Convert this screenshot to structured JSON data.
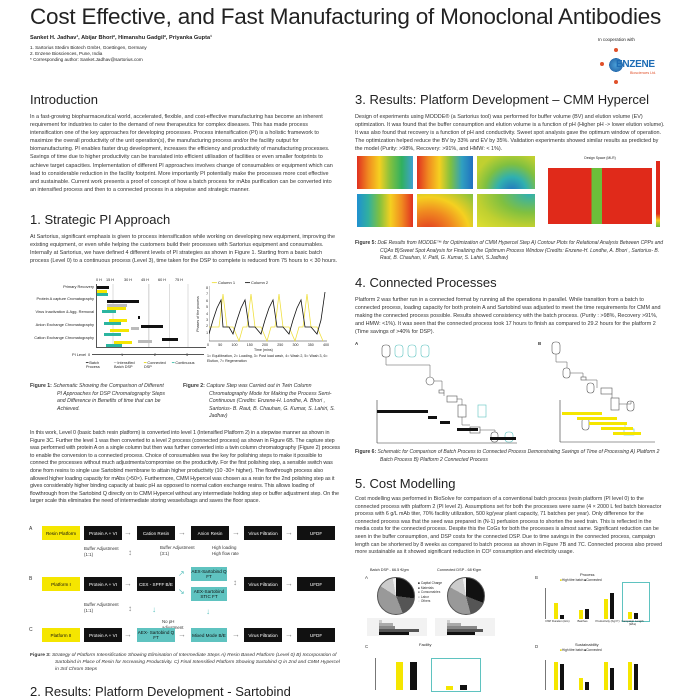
{
  "title": "Cost Effective, and Fast Manufacturing of Monoclonal Antibodies",
  "authors": "Sanket H. Jadhav¹, Abijar Bhori², Himanshu Gadgil², Priyanka Gupta¹",
  "affiliations": [
    "1. Sartorius Stedim Biotech GmbH, Goettingen, Germany",
    "2. Enzene Biosciences, Pune, India",
    "* Corresponding author: Sanket.Jadhav@sartorius.com"
  ],
  "cooperation": {
    "label": "In cooperation with",
    "logo_text": "ENZENE",
    "logo_sub": "Biosciences Ltd."
  },
  "intro": {
    "heading": "Introduction",
    "body": "In a fast-growing biopharmaceutical world, accelerated, flexible, and cost-effective manufacturing has become an inherent requirement for industries to cater to the demand of new therapeutics for complex diseases. This has made process intensification one of the key approaches for developing processes. Process intensification (PI) is a holistic framework to maximize the overall productivity of the unit operation(s), the manufacturing process and/or the facility output for biomanufacturing. PI enables faster drug development, increases the efficiency and productivity of manufacturing processes. Savings of time due to higher productivity can be translated into efficient utilisation of facilities or even smaller footprints to achieve target capacities. Implementation of different PI approaches involves change of consumables or equipment which can lead to considerable reduction in the facility footprint. More importantly PI potentially make the processes more cost effective and sustainable. Current work presents a proof of concept of how a batch process for mAbs purification can be converted into an intensified process and then to a connected process in a stepwise and strategic manner."
  },
  "s1": {
    "heading": "1. Strategic PI Approach",
    "body": "At Sartorius, significant emphasis is given to process intensification while working on developing new equipment, improving the existing equipment, or even while helping the customers build their processes with Sartorius equipment and consumables. Internally at Sartorius, we have defined 4 different levels of PI strategies as shown in Figure 1. Starting from a basic batch process (Level 0) to a continuous process (Level 3), time taken for the DSP to complete is reduced from 75 hours to < 30 hours.",
    "body2": "In this work, Level 0 (basic batch resin platform) is converted into level 1 (Intensified Platform 2) in a stepwise manner as shown in Figure 3C. Further the level 1 was then converted to a level 2 process (connected process) as shown in Figure 6B. The capture step was performed with protein A on a single column but then was further converted into a twin column chromatography (Figure 2) process to enable the conversion to a connected process. Choice of consumables was the key for polishing steps to make it possible to connect the processes without much adjustments/compromise on the productivity. For the first polishing step, a sensible switch was done from resins to single use Sartobind membrane to attain higher productivity (10 -30× higher). The flowthrough process also allowed higher loading capacity for mAbs (>50×). Furthermore, CMM Hypercel was chosen as a resin for the 2nd polishing step as it gives considerably higher binding capacity at basic pH as opposed to normal cation exchange resins. This allows loading of flowthrough from the Sartobind Q directly on to CMM Hypercel without any intermediate holding step or buffer adjustment step. On the larger scale this eliminates the need of intermediate storing vessels/bags and saves the floor space."
  },
  "fig1": {
    "time_ticks": [
      "0 H",
      "15 H",
      "30 H",
      "45 H",
      "60 H",
      "75 H"
    ],
    "rows": [
      "Primary Recovery",
      "Protein A capture Cromatography",
      "Virus Inactivation & Agg. Removal",
      "Anion Exchange Chromatography",
      "Cation Exchange Chromatography"
    ],
    "pi_level_label": "PI Level",
    "pi_levels": [
      "0",
      "1",
      "2",
      "3"
    ],
    "legend": [
      "Batch Process",
      "Intensified Batch DSP",
      "Connected DSP",
      "Continuous"
    ],
    "colors": [
      "#111111",
      "#bbbbbb",
      "#f5e600",
      "#2bb5a0"
    ],
    "caption_label": "Figure 1:",
    "caption": "Schematic Showing the Comparison of Different PI Approaches for DSP Chromatography Steps and Difference in Benefits of time that can be Achieved."
  },
  "fig2": {
    "legend": [
      "Column 1",
      "Column 2"
    ],
    "ylabel": "Phases of the process",
    "y_ticks": [
      "1",
      "2",
      "3",
      "4",
      "5",
      "6",
      "7",
      "8"
    ],
    "x_ticks": [
      "0",
      "50",
      "100",
      "150",
      "200",
      "250",
      "300",
      "350",
      "400"
    ],
    "xlabel": "Time (mins)",
    "note": "1= Equilibration, 2= Loading, 3= Post load wash, 4= Wash 2, 5= Wash 3, 6= Elution, 7= Regeneration",
    "caption_label": "Figure 2:",
    "caption": "Capture Step was Carried out in Twin Column Chromatography Mode for Making the Process Semi-Continuous (Credits: Enzene-H. Londhe, A. Bhori , Sartorius- B. Raut, B. Chauhan, G. Kumar, S. Lahiri, S. Jadhav)"
  },
  "fig3": {
    "rows": {
      "A": {
        "letter": "A",
        "label": "Resin Platform",
        "steps": [
          "Protein A + VI",
          "Cation Resin",
          "Anion Resin",
          "Virus Filtration",
          "UFDF"
        ]
      },
      "B": {
        "letter": "B",
        "label": "Platform I",
        "steps": [
          "Protein A + VI",
          "CEX - SPFF B/E",
          "AEX-Sartobind Q FT",
          "AEX-Sartobind STIC FT",
          "Virus Filtration",
          "UFDF"
        ]
      },
      "C": {
        "letter": "C",
        "label": "Platform II",
        "steps": [
          "Protein A + VI",
          "AEX- Sartobind Q FT",
          "Mixed Mode B/E",
          "Virus Filtration",
          "UFDF"
        ]
      }
    },
    "notes": {
      "buffer_adj_1": "Buffer Adjustment (1:1)",
      "buffer_adj_2": "Buffer Adjustment (3:1)",
      "high_loading": "High loading High flow rate",
      "buffer_adj_3": "Buffer Adjustment (1:1)",
      "no_ph": "No pH adjustment"
    },
    "caption_label": "Figure 3:",
    "caption": "Strategy of Platform Intensification Showing Elimination of Intermediate Steps A) Resin Based Platform (Level 0) B) Incorporation of Sartobind in Place of Resin for Increasing Productivity. C) Final Intensified Platform Showing Sartobind Q in 2nd and CMM Hypercel in 3rd Chrom Steps"
  },
  "s2": {
    "heading": "2. Results: Platform Development - Sartobind"
  },
  "s3": {
    "heading": "3. Results: Platform Development – CMM Hypercel",
    "body": "Design of experiments using MODDE® (a Sartorius tool) was performed for buffer volume (BV) and elution volume (EV) optimization. It was found that the buffer consumption and elution volume is a function of pH (Higher pH -> lower elution volume). It was also found that recovery is a function of pH and conductivity. Sweet spot analysis gave the optimum window of operation. The optimization helped reduce the BV by 33% and EV by 35%. Validation experiments showed similar results as predicted by the model (Purity: >98%, Recovery: >91%, and HMW: < 1%).",
    "sweet_title": "Design Space (MLR)",
    "caption_label": "Figure 5:",
    "caption": "DoE Results from MODDE™ for Optimization of CMM Hypercel Step A) Contour Plots for Relational Analysis Between CPPs and CQAs B)Sweet Spot Analysis for Finalizing the Optimum Process Window (Credits: Enzene-H. Londhe, A. Bhori , Sartorius- B. Raut, B. Chauhan, V. Patil, G. Kumar, S. Lahiri, S.Jadhav)"
  },
  "s4": {
    "heading": "4. Connected Processes",
    "body": "Platform 2 was further run in a connected format by running all the operations in parallel. While transition from a batch to connected process, loading capacity for both protein A and Sartobind was adjusted to meet the time requirements for CMM and making the connected process possible. Results showed consistency with the batch process. (Purity : >98%, Recovery >91%, and HMW: <1%). It was seen that the connected process took 17 hours to finish as compared to 29.2 hours for the platform 2 (Time savings of >40% for DSP).",
    "panel_a": "A",
    "panel_b": "B",
    "caption_label": "Figure 6:",
    "caption": "Schematic for Comparison of Batch Process to Connected Process Demonstrating Savings of Time of Processing A) Platform 2 Batch Process B) Platform 2 Connected Process"
  },
  "s5": {
    "heading": "5. Cost Modelling",
    "body": "Cost modelling was performed in BioSolve for comparison of a conventional batch process (resin platform (PI level 0) to the connected process with platform 2 (PI level 2). Assumptions set for both the processes were same (4 × 2000 L fed batch bioreactor process with 6 g/L mAb titer, 70% facility utilization, 500 kg/year plant capacity, 71 batches per year). Only difference for the connected process was that the seed was prepared in (N-1) perfusion process to shorten the seed train. This is reflected in the media costs for the connected process. Despite this the CoGs for both the processes is almost same. Significant reduction can be seen in the buffer consumption, and DSP costs for the connected DSP. Due to time savings in the connected process, campaign length can be shortened by 8 weeks as compared to batch process as shown in Figure 7B and 7C. Connected process also proved more sustainable as it showed significant reduction in CO² consumption and electricity usage."
  },
  "fig7": {
    "pie_titles": [
      "Batch DSP - 66.5 €/gm",
      "Connected DSP - 68 €/gm"
    ],
    "pie_legend": [
      "Capital Charge",
      "Materials",
      "Consumables",
      "Labor",
      "Others"
    ],
    "pie_colors": [
      "#111111",
      "#555555",
      "#999999",
      "#cccccc",
      "#eeeeee"
    ],
    "pies": [
      [
        27,
        17,
        40,
        13,
        3
      ],
      [
        31,
        15,
        37,
        14,
        3
      ]
    ],
    "panels": {
      "a": "A",
      "b": "B",
      "c": "C",
      "d": "D"
    },
    "process_title": "Process",
    "facility_title": "Facility",
    "sustain_title": "Sustainability",
    "bar_legend": [
      "High titre batch",
      "Connected"
    ],
    "process_cats": [
      "DSP Duration (Hrs)",
      "Batches",
      "Productivity (Kg/Yr)",
      "Campaign Length (Wks)"
    ]
  }
}
